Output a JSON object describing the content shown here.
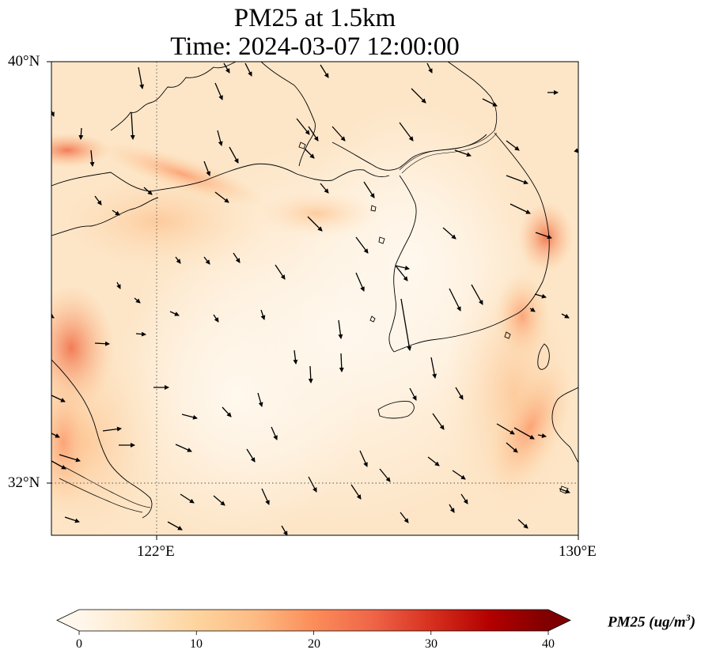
{
  "title": {
    "line1": "PM25 at 1.5km",
    "line2": "Time: 2024-03-07 12:00:00"
  },
  "map": {
    "lon_range": [
      120,
      130
    ],
    "lat_range": [
      31,
      40
    ],
    "gridlines": {
      "lon": [
        122
      ],
      "lat": [
        32
      ],
      "style": "dotted"
    },
    "lon_ticks": [
      {
        "value": 122,
        "label": "122°E"
      },
      {
        "value": 130,
        "label": "130°E"
      }
    ],
    "lat_ticks": [
      {
        "value": 40,
        "label": "40°N"
      },
      {
        "value": 32,
        "label": "32°N"
      }
    ],
    "field_variable": "PM25",
    "field_description": "gridded PM2.5 concentration shading with wind vectors; elevated values along coasts and bands, low values over the Yellow Sea and Korean Peninsula"
  },
  "colorbar": {
    "title": "PM25 (ug/m³)",
    "title_base": "PM25 (ug/m",
    "title_sup": "3",
    "title_end": ")",
    "min": 0,
    "max": 40,
    "extend": "both",
    "colormap": "OrRd",
    "colors": [
      "#fff7ec",
      "#fee8c8",
      "#fdd49e",
      "#fdbb84",
      "#fc8d59",
      "#ef6548",
      "#d7301f",
      "#b30000",
      "#7f0000"
    ],
    "ticks": [
      {
        "value": 0,
        "label": "0"
      },
      {
        "value": 10,
        "label": "10"
      },
      {
        "value": 20,
        "label": "20"
      },
      {
        "value": 30,
        "label": "30"
      },
      {
        "value": 40,
        "label": "40"
      }
    ]
  }
}
